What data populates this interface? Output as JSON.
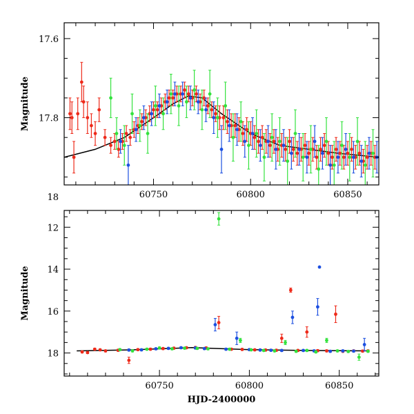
{
  "chart_data": [
    {
      "type": "scatter",
      "panel": "top",
      "xlabel": "",
      "ylabel": "Magnitude",
      "xlim": [
        60704,
        60866
      ],
      "ylim": [
        17.97,
        17.56
      ],
      "y_inverted": true,
      "x_ticks": [
        60750,
        60800,
        60850
      ],
      "x_tick_labels": [
        "60750",
        "60800",
        "60850"
      ],
      "y_ticks": [
        17.6,
        17.8,
        18.0
      ],
      "y_tick_labels": [
        "17.6",
        "17.8",
        "18"
      ],
      "grid": false,
      "legend": "none",
      "model_curve": {
        "color": "#000000",
        "x": [
          60704,
          60720,
          60735,
          60750,
          60760,
          60768,
          60775,
          60785,
          60800,
          60815,
          60830,
          60845,
          60866
        ],
        "y": [
          17.9,
          17.88,
          17.85,
          17.8,
          17.765,
          17.745,
          17.75,
          17.79,
          17.84,
          17.87,
          17.88,
          17.89,
          17.9
        ]
      },
      "series": [
        {
          "color": "#ee2a1a",
          "x": [
            60707,
            60708,
            60709,
            60711,
            60713,
            60714,
            60716,
            60718,
            60720,
            60722,
            60725,
            60728,
            60730,
            60732,
            60734,
            60736,
            60738,
            60740,
            60742,
            60744,
            60746,
            60748,
            60750,
            60752,
            60754,
            60756,
            60758,
            60760,
            60762,
            60764,
            60766,
            60768,
            60770,
            60772,
            60774,
            60776,
            60778,
            60780,
            60782,
            60784,
            60786,
            60788,
            60790,
            60792,
            60794,
            60796,
            60798,
            60800,
            60802,
            60804,
            60806,
            60808,
            60810,
            60812,
            60814,
            60816,
            60818,
            60820,
            60822,
            60824,
            60826,
            60828,
            60830,
            60832,
            60834,
            60836,
            60838,
            60840,
            60842,
            60844,
            60846,
            60848,
            60850,
            60852,
            60854,
            60856,
            60858,
            60860,
            60862,
            60864
          ],
          "y": [
            17.79,
            17.8,
            17.9,
            17.79,
            17.71,
            17.76,
            17.8,
            17.82,
            17.84,
            17.78,
            17.85,
            17.87,
            17.86,
            17.88,
            17.86,
            17.84,
            17.85,
            17.83,
            17.82,
            17.81,
            17.8,
            17.79,
            17.78,
            17.78,
            17.77,
            17.76,
            17.75,
            17.75,
            17.74,
            17.74,
            17.73,
            17.74,
            17.75,
            17.74,
            17.76,
            17.75,
            17.77,
            17.78,
            17.79,
            17.8,
            17.8,
            17.81,
            17.82,
            17.82,
            17.83,
            17.84,
            17.83,
            17.84,
            17.85,
            17.86,
            17.85,
            17.86,
            17.87,
            17.86,
            17.88,
            17.87,
            17.88,
            17.86,
            17.88,
            17.89,
            17.88,
            17.87,
            17.89,
            17.88,
            17.9,
            17.88,
            17.87,
            17.89,
            17.9,
            17.88,
            17.89,
            17.9,
            17.89,
            17.88,
            17.9,
            17.89,
            17.91,
            17.9,
            17.89,
            17.9
          ],
          "err": [
            0.04,
            0.04,
            0.04,
            0.04,
            0.05,
            0.04,
            0.04,
            0.03,
            0.03,
            0.03,
            0.02,
            0.02,
            0.02,
            0.02,
            0.02,
            0.02,
            0.02,
            0.02,
            0.02,
            0.02,
            0.02,
            0.02,
            0.02,
            0.02,
            0.02,
            0.02,
            0.02,
            0.02,
            0.02,
            0.02,
            0.02,
            0.02,
            0.02,
            0.02,
            0.02,
            0.02,
            0.02,
            0.02,
            0.02,
            0.03,
            0.03,
            0.03,
            0.03,
            0.03,
            0.03,
            0.03,
            0.03,
            0.03,
            0.03,
            0.03,
            0.03,
            0.03,
            0.03,
            0.03,
            0.03,
            0.03,
            0.03,
            0.03,
            0.03,
            0.03,
            0.03,
            0.03,
            0.03,
            0.03,
            0.03,
            0.03,
            0.03,
            0.03,
            0.03,
            0.03,
            0.03,
            0.03,
            0.03,
            0.03,
            0.03,
            0.03,
            0.03,
            0.03,
            0.03,
            0.03
          ]
        },
        {
          "color": "#1c4fe0",
          "x": [
            60733,
            60737,
            60741,
            60745,
            60749,
            60753,
            60757,
            60761,
            60765,
            60769,
            60773,
            60777,
            60781,
            60785,
            60789,
            60793,
            60797,
            60801,
            60805,
            60809,
            60813,
            60817,
            60821,
            60825,
            60829,
            60833,
            60837,
            60841,
            60845,
            60849,
            60853,
            60857,
            60861,
            60865
          ],
          "y": [
            17.86,
            17.92,
            17.83,
            17.8,
            17.79,
            17.77,
            17.76,
            17.74,
            17.74,
            17.75,
            17.76,
            17.78,
            17.8,
            17.88,
            17.82,
            17.83,
            17.86,
            17.84,
            17.87,
            17.86,
            17.88,
            17.87,
            17.89,
            17.88,
            17.9,
            17.86,
            17.89,
            17.92,
            17.9,
            17.88,
            17.9,
            17.91,
            17.89,
            17.9
          ],
          "err": [
            0.03,
            0.05,
            0.03,
            0.03,
            0.03,
            0.03,
            0.03,
            0.03,
            0.03,
            0.03,
            0.03,
            0.03,
            0.04,
            0.06,
            0.04,
            0.04,
            0.04,
            0.04,
            0.04,
            0.04,
            0.05,
            0.04,
            0.04,
            0.04,
            0.04,
            0.04,
            0.04,
            0.05,
            0.04,
            0.04,
            0.04,
            0.04,
            0.04,
            0.04
          ]
        },
        {
          "color": "#33e23d",
          "x": [
            60728,
            60731,
            60735,
            60739,
            60743,
            60747,
            60751,
            60755,
            60759,
            60763,
            60767,
            60771,
            60775,
            60779,
            60783,
            60787,
            60791,
            60795,
            60799,
            60803,
            60807,
            60811,
            60815,
            60819,
            60823,
            60827,
            60831,
            60835,
            60839,
            60843,
            60847,
            60851,
            60855,
            60859,
            60863
          ],
          "y": [
            17.75,
            17.84,
            17.87,
            17.79,
            17.82,
            17.84,
            17.77,
            17.79,
            17.74,
            17.77,
            17.76,
            17.73,
            17.78,
            17.74,
            17.8,
            17.77,
            17.85,
            17.81,
            17.87,
            17.84,
            17.9,
            17.85,
            17.86,
            17.91,
            17.84,
            17.9,
            17.88,
            17.93,
            17.86,
            17.92,
            17.87,
            17.9,
            17.86,
            17.92,
            17.89
          ],
          "err": [
            0.05,
            0.04,
            0.05,
            0.05,
            0.04,
            0.05,
            0.05,
            0.04,
            0.05,
            0.05,
            0.04,
            0.05,
            0.05,
            0.06,
            0.05,
            0.06,
            0.06,
            0.05,
            0.06,
            0.06,
            0.06,
            0.06,
            0.06,
            0.06,
            0.06,
            0.06,
            0.06,
            0.06,
            0.06,
            0.06,
            0.06,
            0.06,
            0.06,
            0.06,
            0.06
          ]
        }
      ]
    },
    {
      "type": "scatter",
      "panel": "bottom",
      "xlabel": "HJD-2400000",
      "ylabel": "Magnitude",
      "xlim": [
        60697,
        60872
      ],
      "ylim": [
        19.1,
        11.2
      ],
      "y_inverted": true,
      "x_ticks": [
        60750,
        60800,
        60850
      ],
      "x_tick_labels": [
        "60750",
        "60800",
        "60850"
      ],
      "y_ticks": [
        12,
        14,
        16,
        18
      ],
      "y_tick_labels": [
        "12",
        "14",
        "16",
        "18"
      ],
      "grid": false,
      "legend": "none",
      "model_curve": {
        "color": "#000000",
        "x": [
          60704,
          60735,
          60768,
          60800,
          60830,
          60866
        ],
        "y": [
          17.9,
          17.85,
          17.745,
          17.84,
          17.88,
          17.9
        ]
      },
      "series": [
        {
          "color": "#ee2a1a",
          "x": [
            60707,
            60710,
            60714,
            60717,
            60720,
            60727,
            60733,
            60738,
            60745,
            60752,
            60758,
            60765,
            60770,
            60776,
            60783,
            60790,
            60796,
            60803,
            60809,
            60815,
            60818,
            60823,
            60827,
            60832,
            60838,
            60843,
            60848,
            60852,
            60858,
            60863,
            60866
          ],
          "y": [
            17.95,
            17.98,
            17.82,
            17.85,
            17.9,
            17.87,
            18.35,
            17.84,
            17.82,
            17.79,
            17.77,
            17.75,
            17.74,
            17.76,
            16.55,
            17.82,
            17.83,
            17.85,
            17.86,
            17.87,
            17.3,
            15.0,
            17.88,
            17.0,
            17.89,
            17.9,
            16.15,
            17.92,
            17.9,
            17.91,
            17.9
          ],
          "err": [
            0.05,
            0.05,
            0.05,
            0.05,
            0.05,
            0.05,
            0.15,
            0.05,
            0.05,
            0.05,
            0.05,
            0.05,
            0.05,
            0.05,
            0.3,
            0.05,
            0.05,
            0.05,
            0.05,
            0.05,
            0.2,
            0.1,
            0.05,
            0.25,
            0.05,
            0.05,
            0.4,
            0.05,
            0.05,
            0.05,
            0.05
          ]
        },
        {
          "color": "#1c4fe0",
          "x": [
            60733,
            60740,
            60748,
            60755,
            60762,
            60770,
            60775,
            60781,
            60787,
            60793,
            60800,
            60806,
            60812,
            60818,
            60824,
            60830,
            60836,
            60839,
            60845,
            60852,
            60858,
            60864
          ],
          "y": [
            17.86,
            17.85,
            17.8,
            17.78,
            17.75,
            17.76,
            17.79,
            16.65,
            17.82,
            17.3,
            17.84,
            17.86,
            17.87,
            17.88,
            16.3,
            17.88,
            17.9,
            13.9,
            17.92,
            17.9,
            17.91,
            17.6
          ],
          "err": [
            0.05,
            0.05,
            0.05,
            0.05,
            0.05,
            0.05,
            0.05,
            0.3,
            0.05,
            0.3,
            0.05,
            0.05,
            0.05,
            0.05,
            0.3,
            0.05,
            0.05,
            0.02,
            0.05,
            0.05,
            0.05,
            0.3
          ],
          "extra_points": [
            {
              "x": 60838,
              "y": 15.8,
              "err": 0.4
            }
          ]
        },
        {
          "color": "#33e23d",
          "x": [
            60728,
            60735,
            60743,
            60750,
            60757,
            60764,
            60771,
            60777,
            60783,
            60789,
            60795,
            60801,
            60808,
            60814,
            60820,
            60826,
            60832,
            60837,
            60843,
            60849,
            60855,
            60861,
            60866
          ],
          "y": [
            17.84,
            17.9,
            17.82,
            17.76,
            17.8,
            17.77,
            17.78,
            17.8,
            11.6,
            17.82,
            17.4,
            17.85,
            17.88,
            17.9,
            17.5,
            17.92,
            17.88,
            17.95,
            17.4,
            17.9,
            17.93,
            18.2,
            17.92
          ],
          "err": [
            0.05,
            0.05,
            0.05,
            0.05,
            0.05,
            0.05,
            0.05,
            0.05,
            0.3,
            0.05,
            0.1,
            0.05,
            0.05,
            0.05,
            0.1,
            0.05,
            0.05,
            0.05,
            0.1,
            0.05,
            0.05,
            0.15,
            0.05
          ]
        }
      ]
    }
  ]
}
